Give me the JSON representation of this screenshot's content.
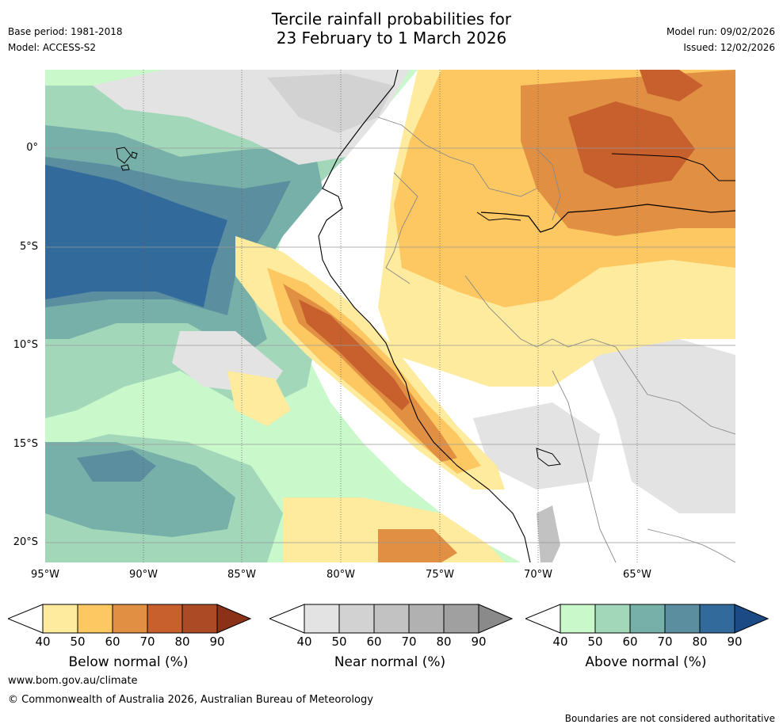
{
  "title": {
    "line1": "Tercile rainfall probabilities for",
    "line2": "23 February to 1 March 2026"
  },
  "meta": {
    "base_period": "Base period: 1981-2018",
    "model": "Model: ACCESS-S2",
    "model_run": "Model run: 09/02/2026",
    "issued": "Issued: 12/02/2026"
  },
  "map": {
    "lat_labels": [
      "0°",
      "5°S",
      "10°S",
      "15°S",
      "20°S"
    ],
    "lon_labels": [
      "95°W",
      "90°W",
      "85°W",
      "80°W",
      "75°W",
      "70°W",
      "65°W"
    ]
  },
  "colorbars": {
    "below": {
      "title": "Below normal (%)",
      "ticks": [
        "40",
        "50",
        "60",
        "70",
        "80",
        "90"
      ],
      "colors": [
        "#ffffff",
        "#feeb9e",
        "#fdc861",
        "#e08f43",
        "#c8602e",
        "#ac4a26",
        "#8a3118"
      ]
    },
    "near": {
      "title": "Near normal (%)",
      "ticks": [
        "40",
        "50",
        "60",
        "70",
        "80",
        "90"
      ],
      "colors": [
        "#ffffff",
        "#e3e3e3",
        "#d2d2d2",
        "#c2c2c2",
        "#b1b1b1",
        "#a0a0a0",
        "#8a8a8a"
      ]
    },
    "above": {
      "title": "Above normal (%)",
      "ticks": [
        "40",
        "50",
        "60",
        "70",
        "80",
        "90"
      ],
      "colors": [
        "#ffffff",
        "#c9f8cb",
        "#a3d7ba",
        "#77afa9",
        "#5b8fa0",
        "#336a9c",
        "#1b4a85"
      ]
    }
  },
  "footer": {
    "url": "www.bom.gov.au/climate",
    "copyright": "© Commonwealth of Australia 2026, Australian Bureau of Meteorology",
    "disclaimer": "Boundaries are not considered authoritative"
  }
}
